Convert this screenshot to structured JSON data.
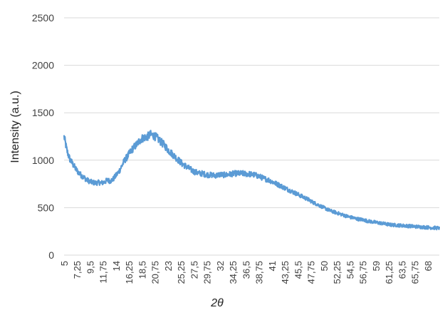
{
  "chart_data": {
    "type": "line",
    "title": "",
    "xlabel": "2θ",
    "ylabel": "Intensity (a.u.)",
    "ylim": [
      0,
      2500
    ],
    "y_ticks": [
      0,
      500,
      1000,
      1500,
      2000,
      2500
    ],
    "xlim": [
      5,
      70
    ],
    "x_tick_labels": [
      "5",
      "7,25",
      "9,5",
      "11,75",
      "14",
      "16,25",
      "18,5",
      "20,75",
      "23",
      "25,25",
      "27,5",
      "29,75",
      "32",
      "34,25",
      "36,5",
      "38,75",
      "41",
      "43,25",
      "45,5",
      "47,75",
      "50",
      "52,25",
      "54,5",
      "56,75",
      "59",
      "61,25",
      "63,5",
      "65,75",
      "68"
    ],
    "x_tick_values": [
      5,
      7.25,
      9.5,
      11.75,
      14,
      16.25,
      18.5,
      20.75,
      23,
      25.25,
      27.5,
      29.75,
      32,
      34.25,
      36.5,
      38.75,
      41,
      43.25,
      45.5,
      47.75,
      50,
      52.25,
      54.5,
      56.75,
      59,
      61.25,
      63.5,
      65.75,
      68
    ],
    "grid": true,
    "legend": "none",
    "series": [
      {
        "color": "#5b9bd5",
        "x": [
          5,
          5.5,
          6,
          6.5,
          7,
          7.5,
          8,
          8.5,
          9,
          9.5,
          10,
          10.5,
          11,
          11.5,
          12,
          12.5,
          13,
          13.5,
          14,
          14.5,
          15,
          15.5,
          16,
          16.5,
          17,
          17.5,
          18,
          18.5,
          19,
          19.5,
          20,
          20.5,
          21,
          21.5,
          22,
          22.5,
          23,
          23.5,
          24,
          24.5,
          25,
          25.5,
          26,
          26.5,
          27,
          27.5,
          28,
          28.5,
          29,
          29.5,
          30,
          30.5,
          31,
          31.5,
          32,
          32.5,
          33,
          33.5,
          34,
          34.5,
          35,
          35.5,
          36,
          36.5,
          37,
          37.5,
          38,
          38.5,
          39,
          39.5,
          40,
          40.5,
          41,
          41.5,
          42,
          42.5,
          43,
          43.5,
          44,
          44.5,
          45,
          45.5,
          46,
          46.5,
          47,
          47.5,
          48,
          48.5,
          49,
          49.5,
          50,
          50.5,
          51,
          51.5,
          52,
          52.5,
          53,
          53.5,
          54,
          54.5,
          55,
          55.5,
          56,
          56.5,
          57,
          57.5,
          58,
          58.5,
          59,
          59.5,
          60,
          60.5,
          61,
          61.5,
          62,
          62.5,
          63,
          63.5,
          64,
          64.5,
          65,
          65.5,
          66,
          66.5,
          67,
          67.5,
          68,
          68.5,
          69,
          69.5,
          70
        ],
        "y": [
          1250,
          1100,
          1010,
          960,
          910,
          870,
          840,
          815,
          790,
          775,
          765,
          760,
          765,
          760,
          770,
          790,
          780,
          800,
          840,
          880,
          940,
          1000,
          1040,
          1090,
          1130,
          1160,
          1200,
          1230,
          1240,
          1250,
          1270,
          1260,
          1240,
          1210,
          1180,
          1150,
          1110,
          1080,
          1050,
          1020,
          990,
          960,
          940,
          920,
          900,
          880,
          870,
          860,
          860,
          850,
          845,
          845,
          840,
          840,
          850,
          845,
          845,
          850,
          855,
          860,
          860,
          860,
          860,
          855,
          855,
          850,
          845,
          835,
          825,
          810,
          800,
          790,
          775,
          760,
          745,
          730,
          715,
          700,
          685,
          670,
          655,
          640,
          625,
          610,
          595,
          580,
          560,
          545,
          530,
          515,
          500,
          485,
          470,
          460,
          450,
          440,
          430,
          420,
          410,
          400,
          395,
          385,
          380,
          375,
          370,
          360,
          355,
          350,
          345,
          340,
          335,
          330,
          325,
          320,
          318,
          316,
          314,
          312,
          310,
          308,
          305,
          303,
          300,
          298,
          296,
          294,
          292,
          290,
          288,
          286,
          285
        ]
      }
    ]
  }
}
